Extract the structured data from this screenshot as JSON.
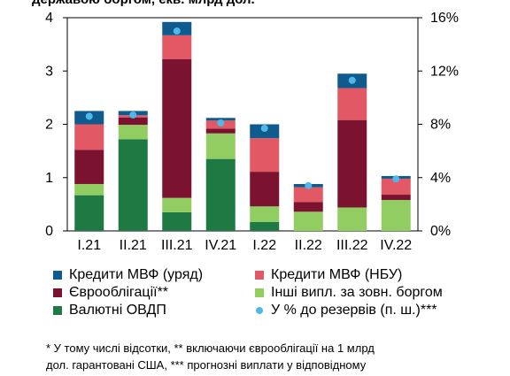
{
  "title_fragment": "державою боргом, екв. млрд дол.",
  "colors": {
    "imf_gov": "#0f5b8e",
    "imf_nbu": "#e25865",
    "eurobonds": "#7a1230",
    "other": "#92cd62",
    "ovdp": "#1e7a42",
    "pct_reserves": "#4fb8ea"
  },
  "chart_data": {
    "type": "bar",
    "stacked": true,
    "categories": [
      "I.21",
      "II.21",
      "III.21",
      "IV.21",
      "I.22",
      "II.22",
      "III.22",
      "IV.22"
    ],
    "series": [
      {
        "name": "Валютні ОВДП",
        "key": "ovdp",
        "values": [
          0.67,
          1.72,
          0.35,
          1.35,
          0.17,
          0.0,
          0.0,
          0.0
        ]
      },
      {
        "name": "Інші випл. за зовн. боргом",
        "key": "other",
        "values": [
          0.21,
          0.27,
          0.27,
          0.48,
          0.29,
          0.36,
          0.44,
          0.58
        ]
      },
      {
        "name": "Єврооблігації**",
        "key": "eurobonds",
        "values": [
          0.64,
          0.14,
          2.6,
          0.09,
          0.65,
          0.18,
          1.64,
          0.1
        ]
      },
      {
        "name": "Кредити МВФ (НБУ)",
        "key": "imf_nbu",
        "values": [
          0.48,
          0.04,
          0.45,
          0.15,
          0.63,
          0.28,
          0.6,
          0.3
        ]
      },
      {
        "name": "Кредити МВФ (уряд)",
        "key": "imf_gov",
        "values": [
          0.25,
          0.08,
          0.25,
          0.05,
          0.26,
          0.06,
          0.27,
          0.05
        ]
      }
    ],
    "line_series": {
      "name": "У % до резервів (п. ш.)***",
      "key": "pct_reserves",
      "values": [
        8.6,
        8.7,
        15.0,
        8.1,
        7.7,
        3.4,
        11.3,
        3.9
      ]
    },
    "y_left": {
      "min": 0,
      "max": 4,
      "ticks": [
        "0",
        "1",
        "2",
        "3",
        "4"
      ]
    },
    "y_right": {
      "min": 0,
      "max": 16,
      "ticks": [
        "0%",
        "4%",
        "8%",
        "12%",
        "16%"
      ]
    },
    "grid": false
  },
  "legend": [
    {
      "label": "Кредити МВФ (уряд)",
      "key": "imf_gov",
      "shape": "square"
    },
    {
      "label": "Кредити МВФ (НБУ)",
      "key": "imf_nbu",
      "shape": "square"
    },
    {
      "label": "Єврооблігації**",
      "key": "eurobonds",
      "shape": "square"
    },
    {
      "label": "Інші випл. за зовн. боргом",
      "key": "other",
      "shape": "square"
    },
    {
      "label": "Валютні ОВДП",
      "key": "ovdp",
      "shape": "square"
    },
    {
      "label": "У % до резервів (п. ш.)***",
      "key": "pct_reserves",
      "shape": "circle"
    }
  ],
  "footnote": [
    "* У тому числі відсотки, ** включаючи єврооблігації на 1 млрд",
    "дол. гарантовані США, *** прогнозні виплати у відповідному"
  ]
}
